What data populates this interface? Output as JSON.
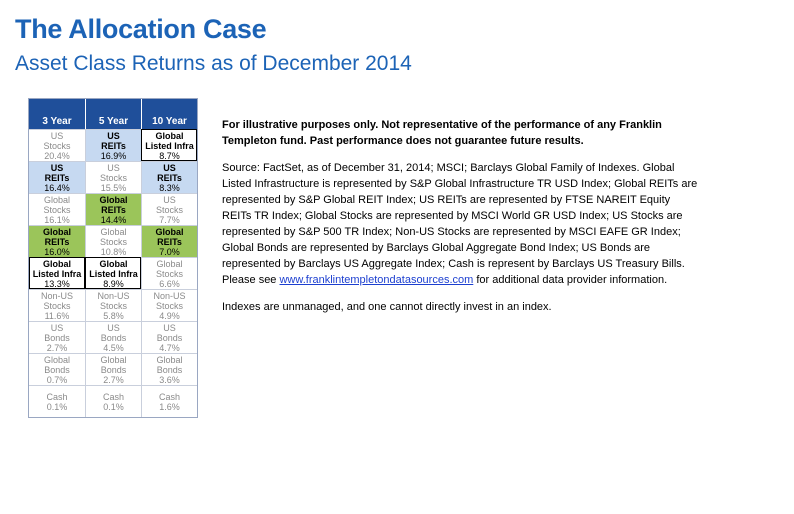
{
  "title": "The Allocation Case",
  "subtitle": "Asset Class Returns as of December 2014",
  "table": {
    "headers": [
      "3 Year",
      "5 Year",
      "10 Year"
    ],
    "rows": [
      [
        {
          "name": "US Stocks",
          "line1": "US",
          "line2": "Stocks",
          "pct": "20.4%",
          "style": "gray"
        },
        {
          "name": "US REITs",
          "line1": "US",
          "line2": "REITs",
          "pct": "16.9%",
          "style": "blue"
        },
        {
          "name": "Global Listed Infra",
          "line1": "Global",
          "line2": "Listed Infra",
          "pct": "8.7%",
          "style": "bold"
        }
      ],
      [
        {
          "name": "US REITs",
          "line1": "US",
          "line2": "REITs",
          "pct": "16.4%",
          "style": "blue"
        },
        {
          "name": "US Stocks",
          "line1": "US",
          "line2": "Stocks",
          "pct": "15.5%",
          "style": "gray"
        },
        {
          "name": "US REITs",
          "line1": "US",
          "line2": "REITs",
          "pct": "8.3%",
          "style": "blue"
        }
      ],
      [
        {
          "name": "Global Stocks",
          "line1": "Global",
          "line2": "Stocks",
          "pct": "16.1%",
          "style": "gray"
        },
        {
          "name": "Global REITs",
          "line1": "Global",
          "line2": "REITs",
          "pct": "14.4%",
          "style": "green"
        },
        {
          "name": "US Stocks",
          "line1": "US",
          "line2": "Stocks",
          "pct": "7.7%",
          "style": "gray"
        }
      ],
      [
        {
          "name": "Global REITs",
          "line1": "Global",
          "line2": "REITs",
          "pct": "16.0%",
          "style": "green"
        },
        {
          "name": "Global Stocks",
          "line1": "Global",
          "line2": "Stocks",
          "pct": "10.8%",
          "style": "gray"
        },
        {
          "name": "Global REITs",
          "line1": "Global",
          "line2": "REITs",
          "pct": "7.0%",
          "style": "green"
        }
      ],
      [
        {
          "name": "Global Listed Infra",
          "line1": "Global",
          "line2": "Listed Infra",
          "pct": "13.3%",
          "style": "bold"
        },
        {
          "name": "Global Listed Infra",
          "line1": "Global",
          "line2": "Listed Infra",
          "pct": "8.9%",
          "style": "bold"
        },
        {
          "name": "Global Stocks",
          "line1": "Global",
          "line2": "Stocks",
          "pct": "6.6%",
          "style": "gray"
        }
      ],
      [
        {
          "name": "Non-US Stocks",
          "line1": "Non-US",
          "line2": "Stocks",
          "pct": "11.6%",
          "style": "gray"
        },
        {
          "name": "Non-US Stocks",
          "line1": "Non-US",
          "line2": "Stocks",
          "pct": "5.8%",
          "style": "gray"
        },
        {
          "name": "Non-US Stocks",
          "line1": "Non-US",
          "line2": "Stocks",
          "pct": "4.9%",
          "style": "gray"
        }
      ],
      [
        {
          "name": "US Bonds",
          "line1": "US",
          "line2": "Bonds",
          "pct": "2.7%",
          "style": "gray"
        },
        {
          "name": "US Bonds",
          "line1": "US",
          "line2": "Bonds",
          "pct": "4.5%",
          "style": "gray"
        },
        {
          "name": "US Bonds",
          "line1": "US",
          "line2": "Bonds",
          "pct": "4.7%",
          "style": "gray"
        }
      ],
      [
        {
          "name": "Global Bonds",
          "line1": "Global",
          "line2": "Bonds",
          "pct": "0.7%",
          "style": "gray"
        },
        {
          "name": "Global Bonds",
          "line1": "Global",
          "line2": "Bonds",
          "pct": "2.7%",
          "style": "gray"
        },
        {
          "name": "Global Bonds",
          "line1": "Global",
          "line2": "Bonds",
          "pct": "3.6%",
          "style": "gray"
        }
      ],
      [
        {
          "name": "Cash",
          "line1": "Cash",
          "line2": "",
          "pct": "0.1%",
          "style": "gray"
        },
        {
          "name": "Cash",
          "line1": "Cash",
          "line2": "",
          "pct": "0.1%",
          "style": "gray"
        },
        {
          "name": "Cash",
          "line1": "Cash",
          "line2": "",
          "pct": "1.6%",
          "style": "gray"
        }
      ]
    ]
  },
  "colors": {
    "title": "#1c63b6",
    "header_bg": "#1f4f9a",
    "reit_us_bg": "#c6d9f1",
    "reit_global_bg": "#9bc55a",
    "link": "#1c3fd0"
  },
  "disclaimer": "For illustrative purposes only. Not representative of the performance of any Franklin Templeton fund. Past performance does not guarantee future results.",
  "source_text_before_link": "Source: FactSet, as of December 31, 2014; MSCI; Barclays Global Family of Indexes. Global Listed Infrastructure is represented by S&P Global Infrastructure TR USD Index; Global REITs are represented by S&P Global REIT Index; US REITs are represented by FTSE NAREIT Equity REITs TR Index; Global Stocks are represented by MSCI World GR USD Index; US Stocks are represented by S&P 500 TR Index; Non-US Stocks are represented by MSCI EAFE GR Index; Global Bonds are represented by Barclays Global Aggregate Bond Index; US Bonds are represented by Barclays US Aggregate Index; Cash is represent by Barclays US Treasury Bills. Please see ",
  "source_link": "www.franklintempletondatasources.com",
  "source_text_after_link": " for additional data provider information.",
  "indexes_note": "Indexes are unmanaged, and one cannot directly invest in an index."
}
